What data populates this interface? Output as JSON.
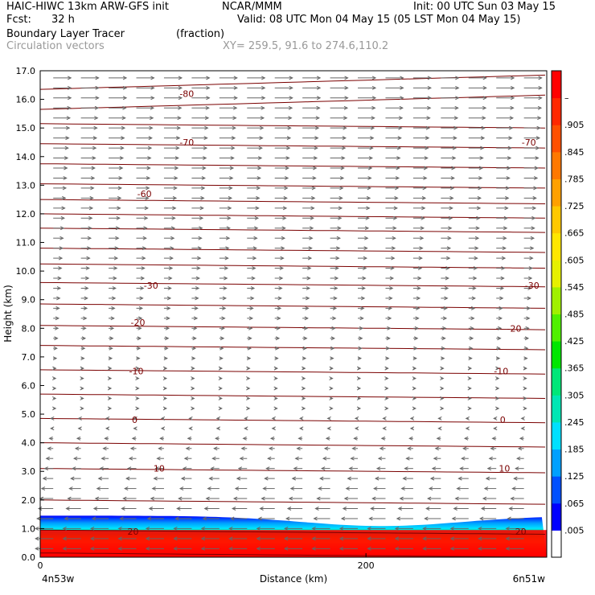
{
  "header": {
    "model": "HAIC-HIWC 13km ARW-GFS init",
    "org": "NCAR/MMM",
    "init": "Init: 00 UTC Sun 03 May 15",
    "fcst_label": "Fcst:",
    "fcst_value": "32 h",
    "valid": "Valid: 08 UTC Mon 04 May 15 (05 LST Mon 04 May 15)",
    "field": "Boundary Layer Tracer",
    "units": "(fraction)",
    "vectors": "Circulation vectors",
    "xy": "XY= 259.5, 91.6 to 274.6,110.2"
  },
  "colors": {
    "contour": "#7a0000",
    "vector": "#666666",
    "colorbar": [
      "#ffffff",
      "#0000ff",
      "#0050ff",
      "#00a0ff",
      "#00e0ff",
      "#00e6b4",
      "#00e678",
      "#00e600",
      "#50f000",
      "#a0f000",
      "#e6f000",
      "#ffe600",
      "#ffc800",
      "#ffa000",
      "#ff7800",
      "#ff5000",
      "#ff2800",
      "#ff0000"
    ]
  },
  "chart_data": {
    "type": "cross-section",
    "ylabel": "Height (km)",
    "xlabel": "Distance (km)",
    "ylim": [
      0,
      17
    ],
    "xlim": [
      0,
      311
    ],
    "yticks": [
      "0.0",
      "1.0",
      "2.0",
      "3.0",
      "4.0",
      "5.0",
      "6.0",
      "7.0",
      "8.0",
      "9.0",
      "10.0",
      "11.0",
      "12.0",
      "13.0",
      "14.0",
      "15.0",
      "16.0",
      "17.0"
    ],
    "xticks": [
      {
        "value": 0,
        "label": "0"
      },
      {
        "value": 200,
        "label": "200"
      }
    ],
    "left_endpoint": "4n53w",
    "right_endpoint": "6n51w",
    "colorbar_labels": [
      ".005",
      ".065",
      ".125",
      ".185",
      ".245",
      ".305",
      ".365",
      ".425",
      ".485",
      ".545",
      ".605",
      ".665",
      ".725",
      ".785",
      ".845",
      ".905",
      "–"
    ],
    "contour_labels": [
      {
        "label": "-80",
        "x": 90,
        "z": 16.2
      },
      {
        "label": "-70",
        "x": 90,
        "z": 14.5
      },
      {
        "label": "-70",
        "x": 300,
        "z": 14.5
      },
      {
        "label": "-60",
        "x": 64,
        "z": 12.7
      },
      {
        "label": "-30",
        "x": 68,
        "z": 9.5
      },
      {
        "label": "-30",
        "x": 302,
        "z": 9.5
      },
      {
        "label": "-20",
        "x": 60,
        "z": 8.2
      },
      {
        "label": "-20",
        "x": 291,
        "z": 8.0
      },
      {
        "label": "-10",
        "x": 59,
        "z": 6.5
      },
      {
        "label": "-10",
        "x": 283,
        "z": 6.5
      },
      {
        "label": "0",
        "x": 58,
        "z": 4.8
      },
      {
        "label": "0",
        "x": 284,
        "z": 4.8
      },
      {
        "label": "10",
        "x": 73,
        "z": 3.1
      },
      {
        "label": "10",
        "x": 285,
        "z": 3.1
      },
      {
        "label": "20",
        "x": 57,
        "z": 0.9
      },
      {
        "label": "20",
        "x": 295,
        "z": 0.9
      }
    ]
  }
}
